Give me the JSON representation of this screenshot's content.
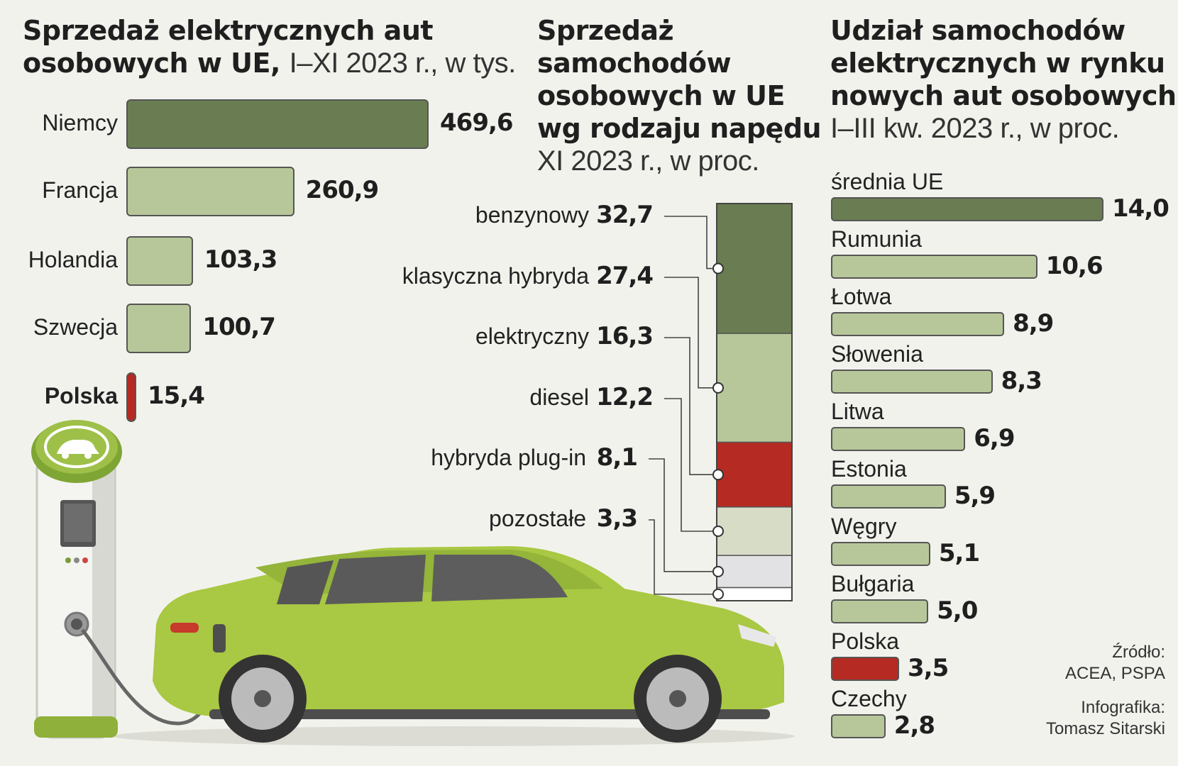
{
  "colors": {
    "dark_green": "#6a7d52",
    "light_green": "#b7c79a",
    "red": "#b52a22",
    "pale_green": "#d6dcc6",
    "light_grey": "#e2e2e4",
    "white": "#ffffff",
    "background": "#f2f2ed",
    "car_green": "#a9c843"
  },
  "chart1": {
    "title_bold": "Sprzedaż elektrycznych aut osobowych w UE,",
    "title_line1": "Sprzedaż elektrycznych aut",
    "title_line2_bold": "osobowych w UE,",
    "title_line2_light": "I–XI 2023 r., w tys."
  },
  "chart2": {
    "title_lines": [
      "Sprzedaż",
      "samochodów",
      "osobowych w UE",
      "wg rodzaju napędu"
    ],
    "subtitle": "XI 2023 r., w proc."
  },
  "chart3": {
    "title_lines": [
      "Udział samochodów",
      "elektrycznych w rynku",
      "nowych aut osobowych"
    ],
    "subtitle": "I–III kw. 2023 r., w proc."
  },
  "chart_data": [
    {
      "type": "bar",
      "orientation": "horizontal",
      "title": "Sprzedaż elektrycznych aut osobowych w UE, I–XI 2023 r., w tys.",
      "categories": [
        "Niemcy",
        "Francja",
        "Holandia",
        "Szwecja",
        "Polska"
      ],
      "values": [
        469.6,
        260.9,
        103.3,
        100.7,
        15.4
      ],
      "value_labels": [
        "469,6",
        "260,9",
        "103,3",
        "100,7",
        "15,4"
      ],
      "highlight": "Polska"
    },
    {
      "type": "bar",
      "orientation": "stacked-vertical",
      "title": "Sprzedaż samochodów osobowych w UE wg rodzaju napędu XI 2023 r., w proc.",
      "categories": [
        "benzynowy",
        "klasyczna hybryda",
        "elektryczny",
        "diesel",
        "hybryda plug-in",
        "pozostałe"
      ],
      "values": [
        32.7,
        27.4,
        16.3,
        12.2,
        8.1,
        3.3
      ],
      "value_labels": [
        "32,7",
        "27,4",
        "16,3",
        "12,2",
        "8,1",
        "3,3"
      ]
    },
    {
      "type": "bar",
      "orientation": "horizontal",
      "title": "Udział samochodów elektrycznych w rynku nowych aut osobowych I–III kw. 2023 r., w proc.",
      "categories": [
        "średnia UE",
        "Rumunia",
        "Łotwa",
        "Słowenia",
        "Litwa",
        "Estonia",
        "Węgry",
        "Bułgaria",
        "Polska",
        "Czechy"
      ],
      "values": [
        14.0,
        10.6,
        8.9,
        8.3,
        6.9,
        5.9,
        5.1,
        5.0,
        3.5,
        2.8
      ],
      "value_labels": [
        "14,0",
        "10,6",
        "8,9",
        "8,3",
        "6,9",
        "5,9",
        "5,1",
        "5,0",
        "3,5",
        "2,8"
      ],
      "highlight": [
        "średnia UE",
        "Polska"
      ]
    }
  ],
  "source": {
    "label": "Źródło:",
    "text": "ACEA, PSPA",
    "credit_label": "Infografika:",
    "credit_name": "Tomasz Sitarski"
  }
}
